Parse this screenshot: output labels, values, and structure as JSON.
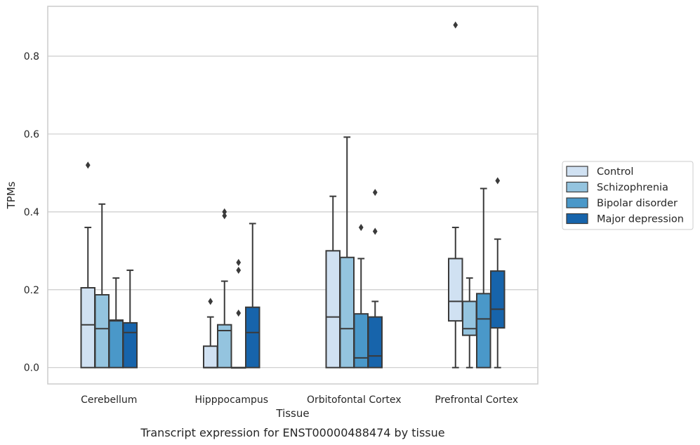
{
  "caption": "Transcript expression for ENST00000488474 by tissue",
  "chart_data": {
    "type": "boxplot",
    "xlabel": "Tissue",
    "ylabel": "TPMs",
    "ylim": [
      -0.042,
      0.928
    ],
    "yticks": [
      0.0,
      0.2,
      0.4,
      0.6,
      0.8
    ],
    "ytick_labels": [
      "0.0",
      "0.2",
      "0.4",
      "0.6",
      "0.8"
    ],
    "grid": "horizontal",
    "legend_placement": "right",
    "categories": [
      "Cerebellum",
      "Hipppocampus",
      "Orbitofontal Cortex",
      "Prefrontal Cortex"
    ],
    "series": [
      {
        "name": "Control",
        "color": "#d0e1f2",
        "boxes": [
          {
            "whislo": 0.0,
            "q1": 0.0,
            "med": 0.11,
            "q3": 0.205,
            "whishi": 0.36,
            "fliers": [
              0.52
            ]
          },
          {
            "whislo": 0.0,
            "q1": 0.0,
            "med": 0.0,
            "q3": 0.055,
            "whishi": 0.13,
            "fliers": [
              0.17
            ]
          },
          {
            "whislo": 0.0,
            "q1": 0.0,
            "med": 0.13,
            "q3": 0.3,
            "whishi": 0.44,
            "fliers": []
          },
          {
            "whislo": 0.0,
            "q1": 0.12,
            "med": 0.17,
            "q3": 0.28,
            "whishi": 0.36,
            "fliers": [
              0.88
            ]
          }
        ]
      },
      {
        "name": "Schizophrenia",
        "color": "#94c4df",
        "boxes": [
          {
            "whislo": 0.0,
            "q1": 0.0,
            "med": 0.1,
            "q3": 0.187,
            "whishi": 0.42,
            "fliers": []
          },
          {
            "whislo": 0.0,
            "q1": 0.0,
            "med": 0.095,
            "q3": 0.11,
            "whishi": 0.222,
            "fliers": [
              0.39,
              0.4
            ]
          },
          {
            "whislo": 0.0,
            "q1": 0.0,
            "med": 0.1,
            "q3": 0.283,
            "whishi": 0.592,
            "fliers": []
          },
          {
            "whislo": 0.0,
            "q1": 0.083,
            "med": 0.1,
            "q3": 0.17,
            "whishi": 0.23,
            "fliers": []
          }
        ]
      },
      {
        "name": "Bipolar disorder",
        "color": "#4a98c9",
        "boxes": [
          {
            "whislo": 0.0,
            "q1": 0.0,
            "med": 0.12,
            "q3": 0.122,
            "whishi": 0.23,
            "fliers": []
          },
          {
            "whislo": 0.0,
            "q1": 0.0,
            "med": 0.0,
            "q3": 0.0,
            "whishi": 0.0,
            "fliers": [
              0.14,
              0.25,
              0.27
            ]
          },
          {
            "whislo": 0.0,
            "q1": 0.0,
            "med": 0.025,
            "q3": 0.138,
            "whishi": 0.28,
            "fliers": [
              0.36
            ]
          },
          {
            "whislo": 0.0,
            "q1": 0.0,
            "med": 0.125,
            "q3": 0.19,
            "whishi": 0.46,
            "fliers": []
          }
        ]
      },
      {
        "name": "Major depression",
        "color": "#1764ab",
        "boxes": [
          {
            "whislo": 0.0,
            "q1": 0.0,
            "med": 0.09,
            "q3": 0.115,
            "whishi": 0.25,
            "fliers": []
          },
          {
            "whislo": 0.0,
            "q1": 0.0,
            "med": 0.09,
            "q3": 0.155,
            "whishi": 0.37,
            "fliers": []
          },
          {
            "whislo": 0.0,
            "q1": 0.0,
            "med": 0.03,
            "q3": 0.13,
            "whishi": 0.17,
            "fliers": [
              0.35,
              0.45
            ]
          },
          {
            "whislo": 0.0,
            "q1": 0.102,
            "med": 0.15,
            "q3": 0.248,
            "whishi": 0.33,
            "fliers": [
              0.48
            ]
          }
        ]
      }
    ]
  }
}
